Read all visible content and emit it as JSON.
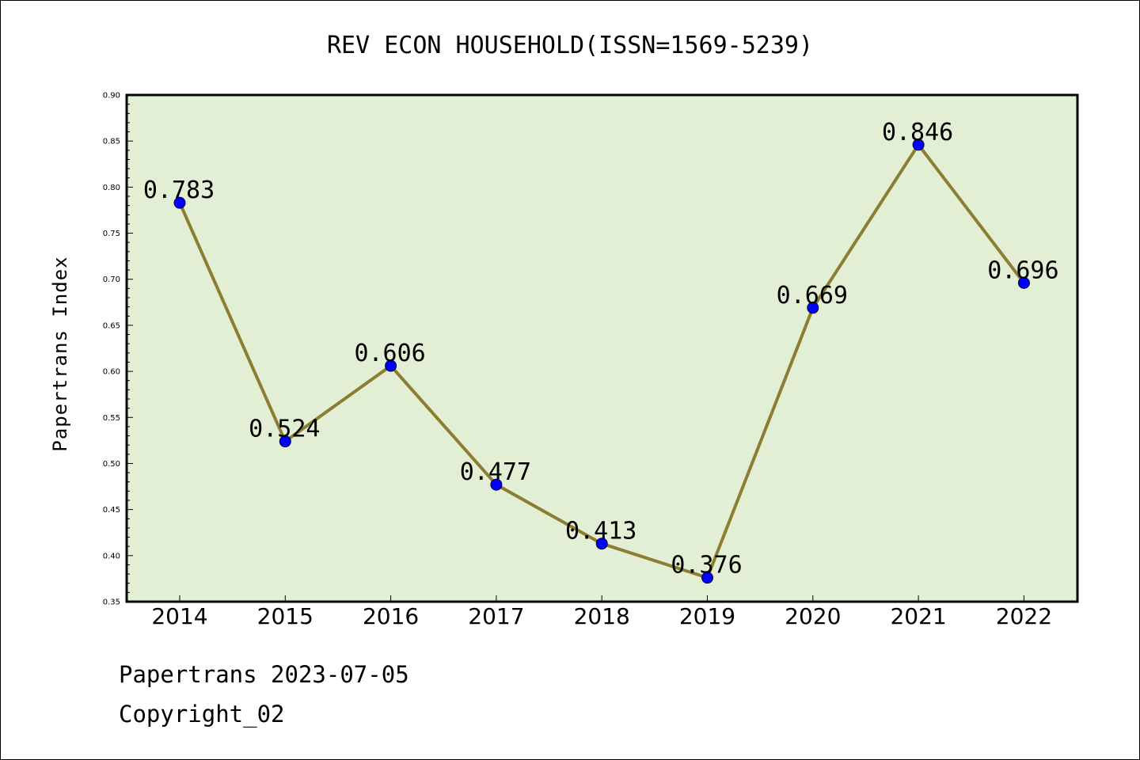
{
  "chart_data": {
    "type": "line",
    "title": "REV ECON HOUSEHOLD(ISSN=1569-5239)",
    "ylabel": "Papertrans Index",
    "xlabel": "",
    "categories": [
      "2014",
      "2015",
      "2016",
      "2017",
      "2018",
      "2019",
      "2020",
      "2021",
      "2022"
    ],
    "values": [
      0.783,
      0.524,
      0.606,
      0.477,
      0.413,
      0.376,
      0.669,
      0.846,
      0.696
    ],
    "data_labels": [
      "0.783",
      "0.524",
      "0.606",
      "0.477",
      "0.413",
      "0.376",
      "0.669",
      "0.846",
      "0.696"
    ],
    "ylim": [
      0.35,
      0.9
    ],
    "yticks": [
      "0.35",
      "0.40",
      "0.45",
      "0.50",
      "0.55",
      "0.60",
      "0.65",
      "0.70",
      "0.75",
      "0.80",
      "0.85",
      "0.90"
    ],
    "grid": false,
    "colors": {
      "plot_bg": "#e2efd5",
      "line": "#8b7d32",
      "marker": "#0000ff"
    }
  },
  "footer": {
    "source": "Papertrans 2023-07-05",
    "copyright": "Copyright_02"
  }
}
